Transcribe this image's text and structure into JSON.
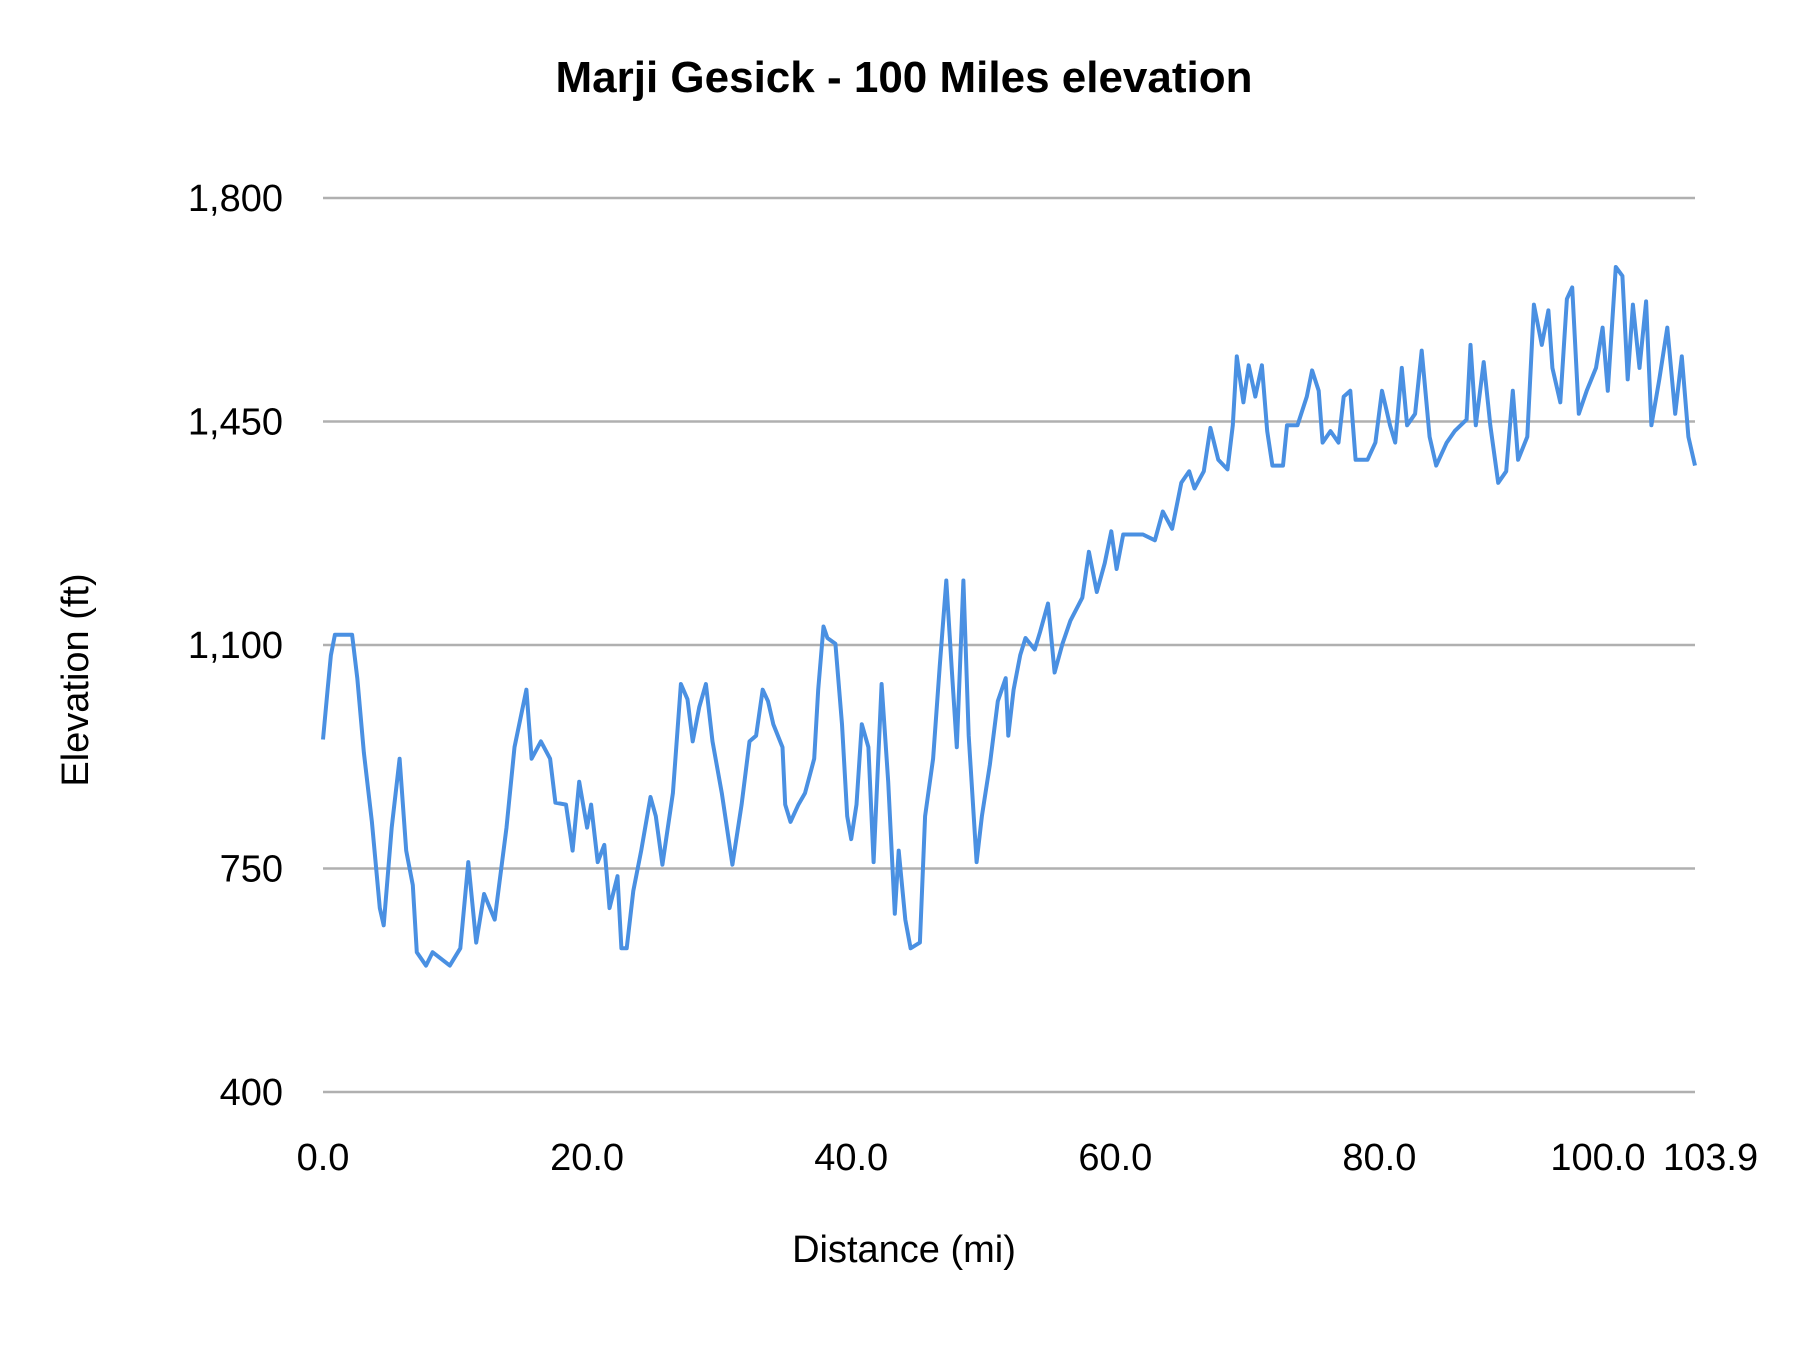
{
  "chart_data": {
    "type": "line",
    "title": "Marji Gesick - 100 Miles elevation",
    "xlabel": "Distance (mi)",
    "ylabel": "Elevation (ft)",
    "xlim": [
      0,
      103.9
    ],
    "ylim": [
      400,
      1800
    ],
    "x_ticks": [
      0,
      20,
      40,
      60,
      80,
      100,
      103.9
    ],
    "x_tick_labels": [
      "0.0",
      "20.0",
      "40.0",
      "60.0",
      "80.0",
      "100.0",
      "103.9"
    ],
    "y_ticks": [
      400,
      750,
      1100,
      1450,
      1800
    ],
    "y_tick_labels": [
      "400",
      "750",
      "1,100",
      "1,450",
      "1,800"
    ],
    "grid": "horizontal",
    "line_color": "#4a90e2",
    "grid_color": "#b0b0b0",
    "series": [
      {
        "x": [
          0,
          0.35,
          0.6,
          0.9,
          2.2,
          2.6,
          3.1,
          3.7,
          4.3,
          4.6,
          5.2,
          5.8,
          6.3,
          6.8,
          7.1,
          7.8,
          8.3,
          9.6,
          10.4,
          11.0,
          11.6,
          12.2,
          13.0,
          13.9,
          14.5,
          15.4,
          15.8,
          16.5,
          17.2,
          17.6,
          18.4,
          18.9,
          19.4,
          20.0,
          20.3,
          20.8,
          21.3,
          21.7,
          22.3,
          22.6,
          23.0,
          23.5,
          24.1,
          24.8,
          25.2,
          25.7,
          26.5,
          27.1,
          27.6,
          28.0,
          28.5,
          29.0,
          29.5,
          30.2,
          31.0,
          31.7,
          32.3,
          32.8,
          33.3,
          33.7,
          34.1,
          34.8,
          35.0,
          35.4,
          36.0,
          36.5,
          37.2,
          37.5,
          37.9,
          38.2,
          38.8,
          39.3,
          39.7,
          40.0,
          40.4,
          40.8,
          41.3,
          41.7,
          42.3,
          42.8,
          43.3,
          43.6,
          44.1,
          44.5,
          45.2,
          45.6,
          46.2,
          46.7,
          47.2,
          47.6,
          48.0,
          48.5,
          48.9,
          49.5,
          49.9,
          50.5,
          51.1,
          51.7,
          51.9,
          52.3,
          52.8,
          53.2,
          53.9,
          54.3,
          54.9,
          55.4,
          56.0,
          56.6,
          57.5,
          58.0,
          58.6,
          59.2,
          59.7,
          60.1,
          60.6,
          61.5,
          62.1,
          63.0,
          63.6,
          64.3,
          65.0,
          65.6,
          66.0,
          66.7,
          67.2,
          67.8,
          68.5,
          68.9,
          69.2,
          69.7,
          70.1,
          70.6,
          71.1,
          71.5,
          71.9,
          72.7,
          73.0,
          73.8,
          74.5,
          74.9,
          75.4,
          75.7,
          76.3,
          76.9,
          77.3,
          77.8,
          78.2,
          79.1,
          79.7,
          80.2,
          80.8,
          81.2,
          81.7,
          82.1,
          82.7,
          83.2,
          83.8,
          84.3,
          85.1,
          85.7,
          86.6,
          86.9,
          87.3,
          87.9,
          88.4,
          89.0,
          89.6,
          90.1,
          90.5,
          91.2,
          91.7,
          92.3,
          92.8,
          93.1,
          93.7,
          94.2,
          94.6,
          95.1,
          95.7,
          96.4,
          96.9,
          97.3,
          97.9,
          98.4,
          98.8,
          99.2,
          99.7,
          100.2,
          100.6,
          101.2,
          101.8,
          102.4,
          102.9,
          103.4,
          103.9
        ],
        "y": [
          952,
          1030,
          1084,
          1116,
          1116,
          1048,
          931,
          823,
          688,
          661,
          814,
          922,
          778,
          724,
          619,
          598,
          619,
          598,
          625,
          760,
          634,
          710,
          670,
          814,
          940,
          1030,
          922,
          949,
          922,
          853,
          850,
          778,
          886,
          814,
          850,
          760,
          787,
          688,
          738,
          625,
          625,
          715,
          778,
          862,
          832,
          756,
          868,
          1039,
          1015,
          949,
          1003,
          1039,
          949,
          868,
          756,
          850,
          949,
          958,
          1030,
          1012,
          976,
          940,
          850,
          823,
          850,
          868,
          922,
          1030,
          1129,
          1111,
          1102,
          976,
          832,
          796,
          850,
          976,
          940,
          760,
          1039,
          886,
          679,
          778,
          670,
          625,
          634,
          832,
          922,
          1066,
          1201,
          1066,
          940,
          1201,
          958,
          760,
          832,
          913,
          1012,
          1048,
          958,
          1030,
          1084,
          1111,
          1093,
          1120,
          1165,
          1057,
          1102,
          1138,
          1174,
          1246,
          1183,
          1228,
          1278,
          1219,
          1273,
          1273,
          1273,
          1264,
          1309,
          1282,
          1354,
          1372,
          1345,
          1372,
          1440,
          1390,
          1375,
          1444,
          1552,
          1480,
          1538,
          1489,
          1538,
          1435,
          1381,
          1381,
          1444,
          1444,
          1489,
          1530,
          1498,
          1417,
          1435,
          1417,
          1489,
          1498,
          1390,
          1390,
          1417,
          1498,
          1444,
          1417,
          1534,
          1444,
          1462,
          1561,
          1426,
          1381,
          1417,
          1435,
          1453,
          1570,
          1444,
          1543,
          1444,
          1354,
          1372,
          1498,
          1390,
          1426,
          1633,
          1570,
          1624,
          1534,
          1480,
          1642,
          1660,
          1462,
          1498,
          1534,
          1597,
          1498,
          1692,
          1678,
          1516,
          1633,
          1534,
          1638,
          1444,
          1516,
          1597,
          1462,
          1552,
          1426,
          1381
        ]
      }
    ]
  }
}
